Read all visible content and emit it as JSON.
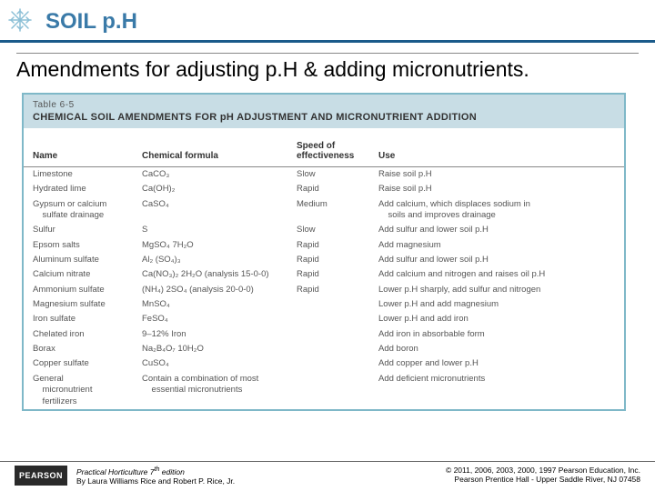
{
  "header": {
    "title": "SOIL p.H"
  },
  "subtitle": "Amendments for adjusting p.H & adding micronutrients.",
  "table": {
    "ref": "Table 6-5",
    "title": "CHEMICAL SOIL AMENDMENTS FOR pH ADJUSTMENT AND MICRONUTRIENT ADDITION",
    "columns": {
      "name": "Name",
      "formula": "Chemical formula",
      "speed_line1": "Speed of",
      "speed_line2": "effectiveness",
      "use": "Use"
    },
    "rows": [
      {
        "name": "Limestone",
        "formula": "CaCO₃",
        "speed": "Slow",
        "use": "Raise soil p.H"
      },
      {
        "name": "Hydrated lime",
        "formula": "Ca(OH)₂",
        "speed": "Rapid",
        "use": "Raise soil p.H"
      },
      {
        "name": "Gypsum or calcium\n    sulfate drainage",
        "formula": "CaSO₄",
        "speed": "Medium",
        "use": "Add calcium, which displaces sodium in\n    soils and improves drainage"
      },
      {
        "name": "Sulfur",
        "formula": "S",
        "speed": "Slow",
        "use": "Add sulfur and lower soil p.H"
      },
      {
        "name": "Epsom salts",
        "formula": "MgSO₄ 7H₂O",
        "speed": "Rapid",
        "use": "Add magnesium"
      },
      {
        "name": "Aluminum sulfate",
        "formula": "Al₂ (SO₄)₃",
        "speed": "Rapid",
        "use": "Add sulfur and lower soil p.H"
      },
      {
        "name": "Calcium nitrate",
        "formula": "Ca(NO₃)₂ 2H₂O (analysis 15-0-0)",
        "speed": "Rapid",
        "use": "Add calcium and nitrogen and raises oil p.H"
      },
      {
        "name": "Ammonium sulfate",
        "formula": "(NH₄) 2SO₄ (analysis 20-0-0)",
        "speed": "Rapid",
        "use": "Lower p.H sharply, add sulfur and nitrogen"
      },
      {
        "name": "Magnesium sulfate",
        "formula": "MnSO₄",
        "speed": "",
        "use": "Lower p.H and add magnesium"
      },
      {
        "name": "Iron sulfate",
        "formula": "FeSO₄",
        "speed": "",
        "use": "Lower p.H and add iron"
      },
      {
        "name": "Chelated iron",
        "formula": "9–12% Iron",
        "speed": "",
        "use": "Add iron in absorbable form"
      },
      {
        "name": "Borax",
        "formula": "Na₂B₄O₇ 10H₂O",
        "speed": "",
        "use": "Add boron"
      },
      {
        "name": "Copper sulfate",
        "formula": "CuSO₄",
        "speed": "",
        "use": "Add copper and lower p.H"
      },
      {
        "name": "General\n    micronutrient\n    fertilizers",
        "formula": "Contain a combination of most\n    essential micronutrients",
        "speed": "",
        "use": "Add deficient micronutrients"
      }
    ]
  },
  "footer": {
    "logo": "PEARSON",
    "book_title": "Practical Horticulture 7",
    "book_suffix": " edition",
    "authors": "By Laura Williams Rice and Robert P. Rice, Jr.",
    "copyright": "© 2011, 2006, 2003, 2000, 1997 Pearson Education, Inc.",
    "imprint": "Pearson Prentice Hall - Upper Saddle River, NJ 07458"
  },
  "colors": {
    "title": "#3a7aa8",
    "rule": "#1a5a8a",
    "table_border": "#7fb8c8",
    "band": "#c8dde5"
  }
}
